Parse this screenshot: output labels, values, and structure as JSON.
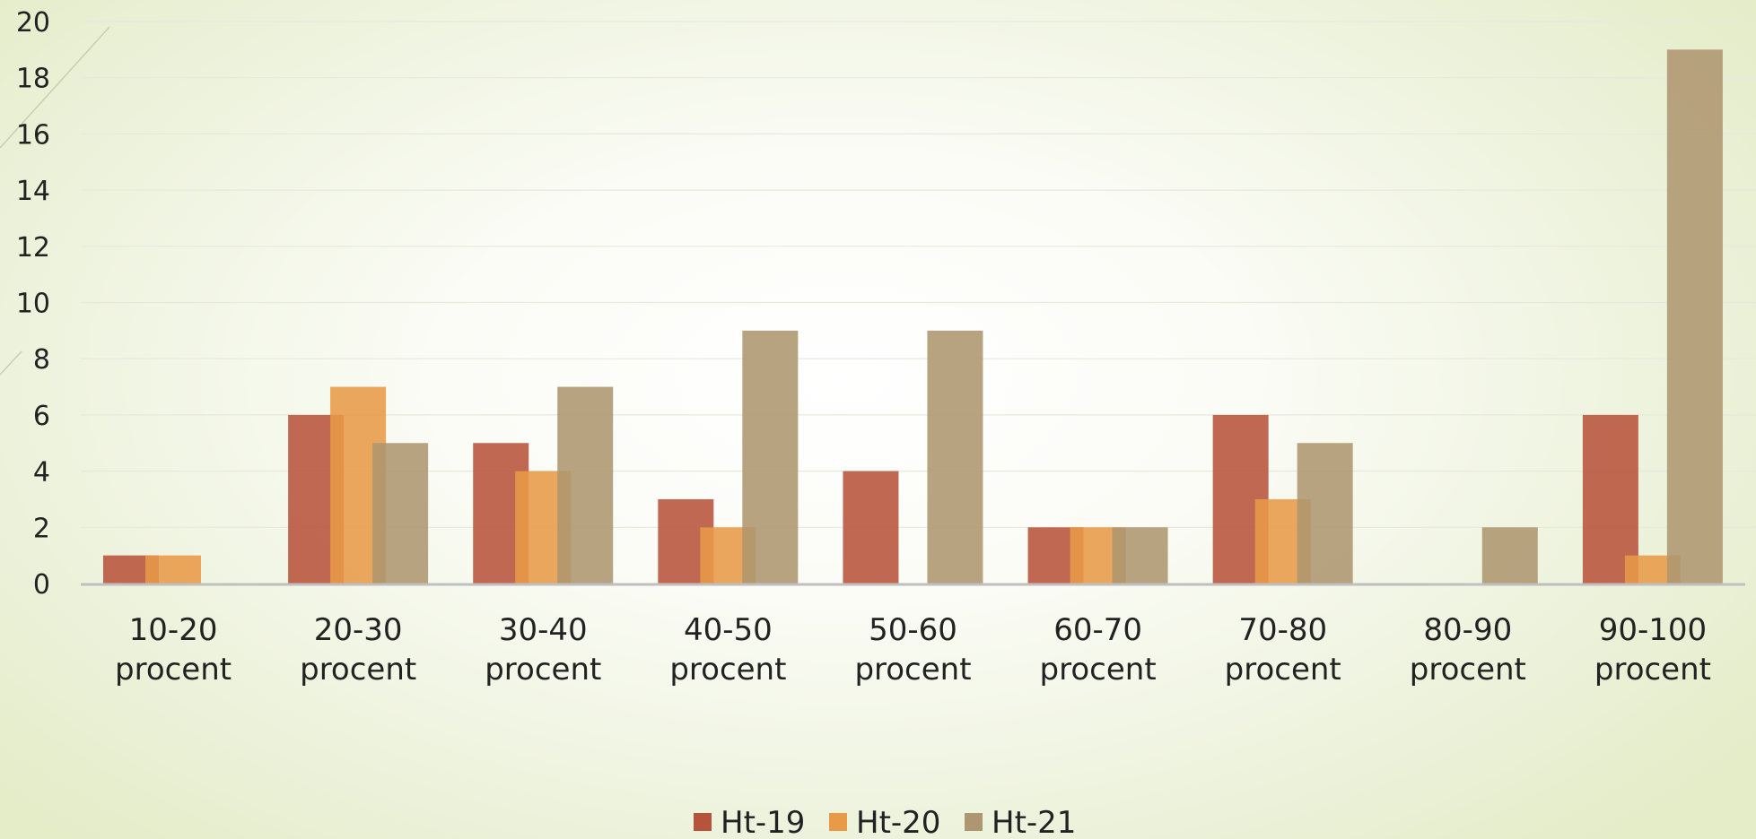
{
  "chart_data": {
    "type": "bar",
    "categories": [
      [
        "10-20",
        "procent"
      ],
      [
        "20-30",
        "procent"
      ],
      [
        "30-40",
        "procent"
      ],
      [
        "40-50",
        "procent"
      ],
      [
        "50-60",
        "procent"
      ],
      [
        "60-70",
        "procent"
      ],
      [
        "70-80",
        "procent"
      ],
      [
        "80-90",
        "procent"
      ],
      [
        "90-100",
        "procent"
      ]
    ],
    "series": [
      {
        "name": "Ht-19",
        "color": "#B8533B",
        "values": [
          1,
          6,
          5,
          3,
          4,
          2,
          6,
          0,
          6
        ]
      },
      {
        "name": "Ht-20",
        "color": "#E89A48",
        "values": [
          1,
          7,
          4,
          2,
          0,
          2,
          3,
          0,
          1
        ]
      },
      {
        "name": "Ht-21",
        "color": "#AE9670",
        "values": [
          0,
          5,
          7,
          9,
          9,
          2,
          5,
          2,
          19
        ]
      }
    ],
    "ylim": [
      0,
      20
    ],
    "yticks": [
      0,
      2,
      4,
      6,
      8,
      10,
      12,
      14,
      16,
      18,
      20
    ],
    "grid": true,
    "legend": "bottom-center",
    "title": "",
    "xlabel": "",
    "ylabel": ""
  }
}
